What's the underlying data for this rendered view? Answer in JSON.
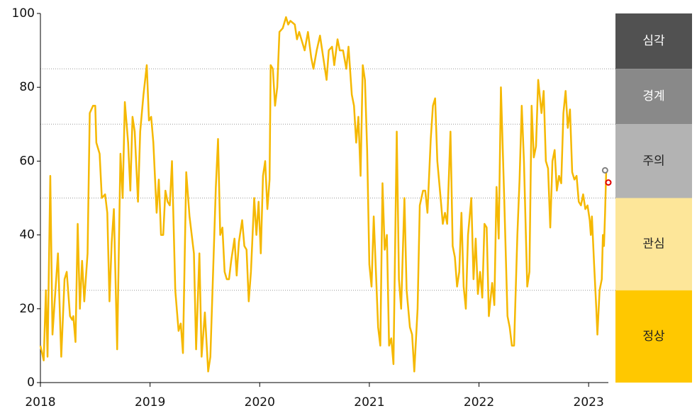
{
  "chart_data": {
    "type": "line",
    "x": [
      2018.0,
      2018.03,
      2018.05,
      2018.065,
      2018.09,
      2018.11,
      2018.13,
      2018.16,
      2018.19,
      2018.22,
      2018.24,
      2018.27,
      2018.29,
      2018.3,
      2018.32,
      2018.34,
      2018.36,
      2018.38,
      2018.4,
      2018.43,
      2018.45,
      2018.48,
      2018.5,
      2018.51,
      2018.54,
      2018.56,
      2018.59,
      2018.61,
      2018.63,
      2018.65,
      2018.67,
      2018.7,
      2018.73,
      2018.75,
      2018.77,
      2018.8,
      2018.82,
      2018.84,
      2018.86,
      2018.89,
      2018.91,
      2018.94,
      2018.97,
      2018.99,
      2019.01,
      2019.03,
      2019.06,
      2019.08,
      2019.1,
      2019.12,
      2019.14,
      2019.16,
      2019.18,
      2019.2,
      2019.23,
      2019.26,
      2019.28,
      2019.3,
      2019.33,
      2019.36,
      2019.4,
      2019.42,
      2019.45,
      2019.47,
      2019.5,
      2019.53,
      2019.55,
      2019.6,
      2019.62,
      2019.64,
      2019.66,
      2019.68,
      2019.7,
      2019.72,
      2019.74,
      2019.77,
      2019.79,
      2019.81,
      2019.84,
      2019.86,
      2019.88,
      2019.9,
      2019.92,
      2019.95,
      2019.97,
      2019.99,
      2020.01,
      2020.03,
      2020.05,
      2020.07,
      2020.09,
      2020.1,
      2020.12,
      2020.14,
      2020.16,
      2020.18,
      2020.21,
      2020.24,
      2020.26,
      2020.28,
      2020.32,
      2020.34,
      2020.36,
      2020.39,
      2020.41,
      2020.44,
      2020.47,
      2020.49,
      2020.52,
      2020.55,
      2020.58,
      2020.61,
      2020.63,
      2020.66,
      2020.68,
      2020.71,
      2020.73,
      2020.76,
      2020.79,
      2020.81,
      2020.84,
      2020.86,
      2020.88,
      2020.9,
      2020.92,
      2020.94,
      2020.96,
      2020.98,
      2021.0,
      2021.02,
      2021.04,
      2021.06,
      2021.08,
      2021.1,
      2021.12,
      2021.14,
      2021.16,
      2021.18,
      2021.2,
      2021.22,
      2021.25,
      2021.27,
      2021.29,
      2021.32,
      2021.34,
      2021.37,
      2021.39,
      2021.41,
      2021.44,
      2021.46,
      2021.49,
      2021.51,
      2021.53,
      2021.56,
      2021.58,
      2021.6,
      2021.62,
      2021.65,
      2021.67,
      2021.69,
      2021.71,
      2021.74,
      2021.76,
      2021.78,
      2021.8,
      2021.82,
      2021.84,
      2021.86,
      2021.88,
      2021.9,
      2021.93,
      2021.95,
      2021.97,
      2021.99,
      2022.01,
      2022.03,
      2022.05,
      2022.07,
      2022.09,
      2022.12,
      2022.14,
      2022.16,
      2022.18,
      2022.2,
      2022.23,
      2022.26,
      2022.28,
      2022.3,
      2022.32,
      2022.35,
      2022.37,
      2022.39,
      2022.41,
      2022.44,
      2022.46,
      2022.48,
      2022.5,
      2022.52,
      2022.54,
      2022.57,
      2022.59,
      2022.61,
      2022.63,
      2022.65,
      2022.67,
      2022.69,
      2022.71,
      2022.73,
      2022.75,
      2022.77,
      2022.79,
      2022.81,
      2022.83,
      2022.85,
      2022.87,
      2022.89,
      2022.91,
      2022.93,
      2022.95,
      2022.97,
      2022.99,
      2023.01,
      2023.02,
      2023.03,
      2023.05,
      2023.07,
      2023.08,
      2023.1,
      2023.12,
      2023.13,
      2023.14,
      2023.15,
      2023.16
    ],
    "series": [
      {
        "color": "#f5b800",
        "values": [
          10,
          6,
          25,
          7,
          56,
          13,
          22,
          35,
          7,
          28,
          30,
          18,
          17,
          18,
          11,
          43,
          20,
          33,
          22,
          35,
          73,
          75,
          75,
          65,
          62,
          50,
          51,
          46,
          22,
          38,
          47,
          9,
          62,
          50,
          76,
          65,
          52,
          72,
          68,
          49,
          68,
          78,
          86,
          71,
          72,
          65,
          46,
          55,
          40,
          40,
          52,
          49,
          48,
          60,
          25,
          14,
          16,
          8,
          57,
          45,
          35,
          9,
          35,
          7,
          19,
          3,
          7,
          53,
          66,
          40,
          42,
          30,
          28,
          28,
          33,
          39,
          29,
          38,
          44,
          37,
          36,
          22,
          30,
          50,
          40,
          49,
          35,
          56,
          60,
          47,
          55,
          86,
          85,
          75,
          80,
          95,
          96,
          99,
          97,
          98,
          97,
          93,
          95,
          92,
          90,
          95,
          88,
          85,
          90,
          94,
          88,
          82,
          90,
          91,
          86,
          93,
          90,
          90,
          85,
          91,
          78,
          75,
          65,
          72,
          56,
          86,
          82,
          63,
          32,
          26,
          45,
          30,
          15,
          10,
          54,
          36,
          40,
          10,
          12,
          5,
          68,
          28,
          20,
          50,
          25,
          15,
          13,
          3,
          20,
          48,
          52,
          52,
          46,
          66,
          75,
          77,
          60,
          50,
          43,
          46,
          43,
          68,
          37,
          34,
          26,
          30,
          46,
          26,
          20,
          40,
          50,
          28,
          39,
          24,
          30,
          23,
          43,
          42,
          18,
          27,
          21,
          53,
          39,
          80,
          50,
          18,
          15,
          10,
          10,
          40,
          55,
          75,
          60,
          26,
          30,
          75,
          61,
          64,
          82,
          73,
          79,
          60,
          58,
          42,
          60,
          63,
          52,
          56,
          54,
          73,
          79,
          69,
          74,
          57,
          55,
          56,
          49,
          48,
          51,
          47,
          48,
          44,
          40,
          45,
          32,
          20,
          13,
          25,
          28,
          40,
          37,
          46,
          57
        ]
      }
    ],
    "markers": [
      {
        "x": 2023.15,
        "y": 57.5,
        "color": "#7f7f7f"
      },
      {
        "x": 2023.18,
        "y": 54.2,
        "color": "#e00000"
      }
    ],
    "xlim": [
      2018,
      2023.18
    ],
    "xticks": [
      2018,
      2019,
      2020,
      2021,
      2022,
      2023
    ],
    "ylim": [
      0,
      100
    ],
    "yticks": [
      0,
      20,
      40,
      60,
      80,
      100
    ],
    "bands": [
      {
        "label": "심각",
        "from": 85,
        "to": 100,
        "color": "#515151"
      },
      {
        "label": "경계",
        "from": 70,
        "to": 85,
        "color": "#898989"
      },
      {
        "label": "주의",
        "from": 50,
        "to": 70,
        "color": "#b3b3b3"
      },
      {
        "label": "관심",
        "from": 25,
        "to": 50,
        "color": "#fde699"
      },
      {
        "label": "정상",
        "from": 0,
        "to": 25,
        "color": "#ffc800"
      }
    ]
  }
}
